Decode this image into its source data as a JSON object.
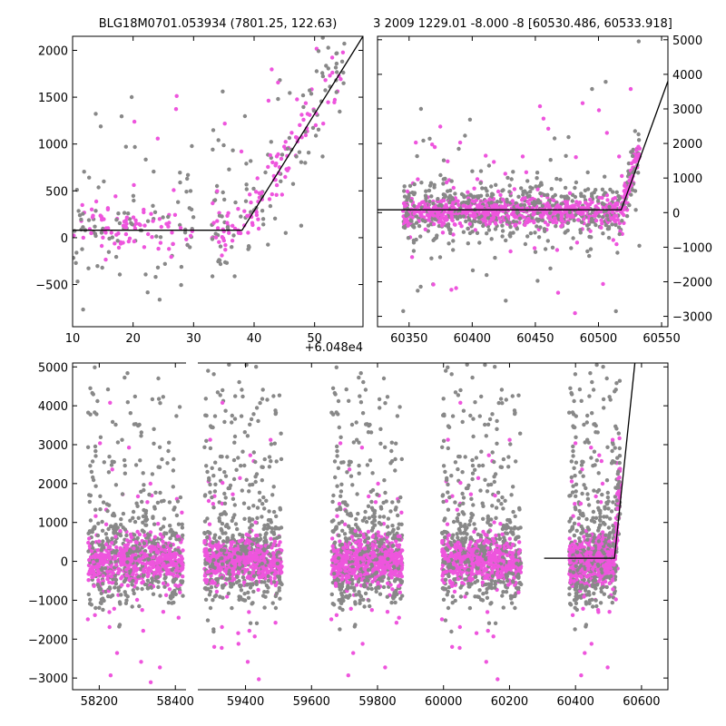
{
  "colors": {
    "series_a": "#888888",
    "series_b": "#ee55dd",
    "model": "#000000"
  },
  "chart_data": [
    {
      "type": "scatter",
      "title": "BLG18M0701.053934 (7801.25, 122.63)",
      "xlim": [
        10,
        58
      ],
      "ylim": [
        -950,
        2150
      ],
      "xticks": [
        "10",
        "20",
        "30",
        "40",
        "50"
      ],
      "yticks": [
        "−500",
        "0",
        "500",
        "1000",
        "1500",
        "2000"
      ],
      "x_offset_label": "+6.048e4",
      "model_line": [
        [
          10,
          80
        ],
        [
          38,
          80
        ],
        [
          58,
          2150
        ]
      ]
    },
    {
      "type": "scatter",
      "title": "3 2009 1229.01 -8.000 -8 [60530.486, 60533.918]",
      "xlim": [
        60325,
        60555
      ],
      "ylim": [
        -3300,
        5100
      ],
      "xticks": [
        "60350",
        "60400",
        "60450",
        "60500",
        "60550"
      ],
      "yticks": [
        "−3000",
        "−2000",
        "−1000",
        "0",
        "1000",
        "2000",
        "3000",
        "4000",
        "5000"
      ],
      "model_line": [
        [
          60325,
          80
        ],
        [
          60518,
          80
        ],
        [
          60555,
          3800
        ]
      ]
    },
    {
      "type": "scatter",
      "title": "",
      "xlim": [
        58130,
        60680
      ],
      "ylim": [
        -3300,
        5100
      ],
      "xticks": [
        "58200",
        "58400",
        "59400",
        "59600",
        "59800",
        "60000",
        "60200",
        "60400",
        "60600"
      ],
      "yticks": [
        "−3000",
        "−2000",
        "−1000",
        "0",
        "1000",
        "2000",
        "3000",
        "4000",
        "5000"
      ],
      "model_line": [
        [
          60305,
          80
        ],
        [
          60518,
          80
        ],
        [
          60580,
          5100
        ]
      ]
    }
  ]
}
